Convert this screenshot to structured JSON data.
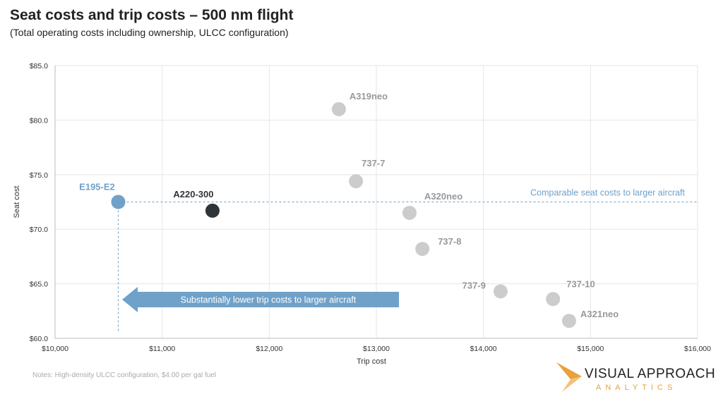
{
  "title": "Seat costs and trip costs – 500 nm flight",
  "subtitle": "(Total operating costs including ownership, ULCC configuration)",
  "notes": "Notes:  High-density ULCC configuration, $4.00 per gal fuel",
  "logo": {
    "title": "VISUAL APPROACH",
    "subtitle": "ANALYTICS"
  },
  "colors": {
    "highlight": "#6fa1c9",
    "dark": "#2f3438",
    "gray": "#cccccc",
    "gray_label": "#999999",
    "arrow": "#6fa1c9",
    "logo_orange": "#e8a13c"
  },
  "chart_data": {
    "type": "scatter",
    "xlabel": "Trip cost",
    "ylabel": "Seat cost",
    "xlim": [
      10000,
      16000
    ],
    "ylim": [
      60,
      85
    ],
    "x_ticks": [
      "$10,000",
      "$11,000",
      "$12,000",
      "$13,000",
      "$14,000",
      "$15,000",
      "$16,000"
    ],
    "y_ticks": [
      "$60.0",
      "$65.0",
      "$70.0",
      "$75.0",
      "$80.0",
      "$85.0"
    ],
    "grid": true,
    "points": [
      {
        "label": "E195-E2",
        "x": 10590,
        "y": 72.5,
        "style": "highlight"
      },
      {
        "label": "A220-300",
        "x": 11470,
        "y": 71.7,
        "style": "dark"
      },
      {
        "label": "A319neo",
        "x": 12650,
        "y": 81.0,
        "style": "gray"
      },
      {
        "label": "737-7",
        "x": 12810,
        "y": 74.4,
        "style": "gray"
      },
      {
        "label": "A320neo",
        "x": 13310,
        "y": 71.5,
        "style": "gray"
      },
      {
        "label": "737-8",
        "x": 13430,
        "y": 68.2,
        "style": "gray"
      },
      {
        "label": "737-9",
        "x": 14160,
        "y": 64.3,
        "style": "gray"
      },
      {
        "label": "737-10",
        "x": 14650,
        "y": 63.6,
        "style": "gray"
      },
      {
        "label": "A321neo",
        "x": 14800,
        "y": 61.6,
        "style": "gray"
      }
    ],
    "annotations": {
      "hline_label": "Comparable seat costs to larger aircraft",
      "arrow_label": "Substantially lower trip costs to larger aircraft"
    }
  }
}
